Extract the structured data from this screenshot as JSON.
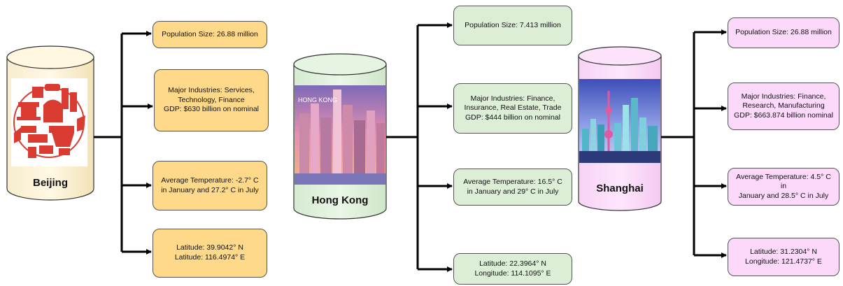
{
  "colors": {
    "beijing_fill": "#ffd98a",
    "hongkong_fill": "#dcefd6",
    "shanghai_fill": "#fcd9fb",
    "line": "#000000"
  },
  "cities": [
    {
      "name": "Beijing",
      "facts": [
        "Population Size: 26.88 million",
        "Major Industries: Services,\nTechnology, Finance\nGDP: $630 billion on nominal",
        "Average Temperature: -2.7° C\nin January and 27.2° C in July",
        "Latitude: 39.9042° N\nLatitude: 116.4974° E"
      ]
    },
    {
      "name": "Hong Kong",
      "image_text": "HONG KONG",
      "facts": [
        "Population Size: 7.413 million",
        "Major Industries: Finance,\nInsurance, Real Estate, Trade\nGDP: $444 billion on nominal",
        "Average Temperature: 16.5° C\nin January and 29° C in July",
        "Latitude: 22.3964° N\nLongitude: 114.1095° E"
      ]
    },
    {
      "name": "Shanghai",
      "facts": [
        "Population Size: 26.88 million",
        "Major Industries: Finance,\nResearch, Manufacturing\nGDP: $663.874 billion nominal",
        "Average Temperature: 4.5° C in\nJanuary and 28.5° C  in July",
        "Latitude: 31.2304° N\nLongitude: 121.4737° E"
      ]
    }
  ]
}
